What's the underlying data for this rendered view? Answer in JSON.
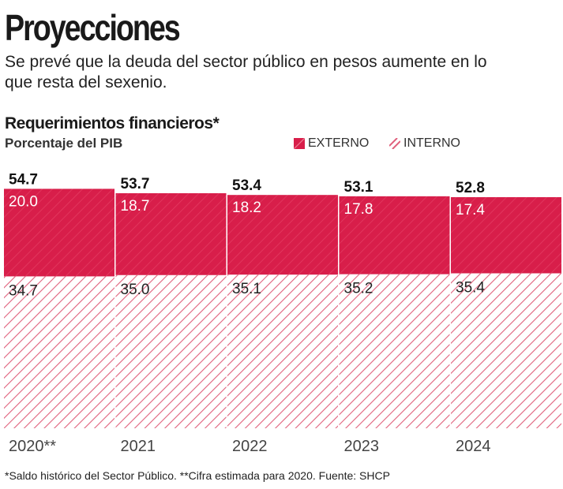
{
  "header": {
    "title": "Proyecciones",
    "subtitle": "Se prevé que la deuda del sector público en pesos aumente en lo que resta del sexenio."
  },
  "colors": {
    "externo": "#d81e4a",
    "interno_hatch": "#e0607c"
  },
  "chart_data": {
    "type": "bar",
    "stacked": true,
    "title": "Requerimientos financieros*",
    "ylabel": "Porcentaje del PIB",
    "categories": [
      "2020**",
      "2021",
      "2022",
      "2023",
      "2024"
    ],
    "totals": [
      54.7,
      53.7,
      53.4,
      53.1,
      52.8
    ],
    "series": [
      {
        "name": "INTERNO",
        "values": [
          34.7,
          35.0,
          35.1,
          35.2,
          35.4
        ],
        "style": "hatched"
      },
      {
        "name": "EXTERNO",
        "values": [
          20.0,
          18.7,
          18.2,
          17.8,
          17.4
        ],
        "style": "solid"
      }
    ],
    "legend_position": "top-right",
    "grid": false
  },
  "footnote": "*Saldo histórico del Sector Público. **Cifra estimada para 2020. Fuente: SHCP"
}
